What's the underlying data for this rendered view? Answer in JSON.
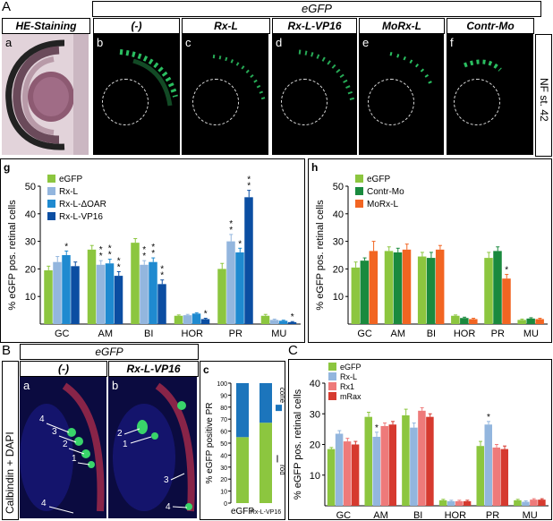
{
  "panelA": {
    "label": "A",
    "egfp_header": "eGFP",
    "he_header": "HE-Staining",
    "stage_label": "NF st. 42",
    "subpanels": [
      {
        "letter": "a",
        "title": "HE-Staining"
      },
      {
        "letter": "b",
        "title": "(-)"
      },
      {
        "letter": "c",
        "title": "Rx-L"
      },
      {
        "letter": "d",
        "title": "Rx-L-VP16"
      },
      {
        "letter": "e",
        "title": "MoRx-L"
      },
      {
        "letter": "f",
        "title": "Contr-Mo"
      }
    ]
  },
  "panelB": {
    "label": "B",
    "egfp_header": "eGFP",
    "side_label": "Calbindin + DAPI",
    "sub_a": {
      "letter": "a",
      "title": "(-)",
      "markers": [
        "4",
        "3",
        "2",
        "1"
      ]
    },
    "sub_b": {
      "letter": "b",
      "title": "Rx-L-VP16",
      "markers": [
        "2",
        "1",
        "3",
        "4"
      ]
    },
    "sub_c": {
      "letter": "c"
    }
  },
  "panelC": {
    "label": "C"
  },
  "chart_data": [
    {
      "id": "g",
      "type": "bar",
      "letter": "g",
      "ylabel": "% eGFP pos. retinal cells",
      "ylim": [
        0,
        50
      ],
      "yticks": [
        10,
        20,
        30,
        40,
        50
      ],
      "categories": [
        "GC",
        "AM",
        "BI",
        "HOR",
        "PR",
        "MU"
      ],
      "series": [
        {
          "name": "eGFP",
          "color": "#8cc63f",
          "values": [
            19.5,
            27,
            29.5,
            3,
            20,
            3
          ],
          "errors": [
            1.5,
            1.5,
            1.5,
            0.3,
            2,
            0.5
          ]
        },
        {
          "name": "Rx-L",
          "color": "#93b6de",
          "values": [
            22.5,
            21.5,
            21.5,
            3.2,
            30,
            1.5
          ],
          "errors": [
            2,
            1.5,
            1.5,
            0.3,
            2.5,
            0.3
          ]
        },
        {
          "name": "Rx-L-ΔOAR",
          "color": "#1f8ad0",
          "values": [
            25,
            22,
            22.5,
            3.8,
            26,
            1.2
          ],
          "errors": [
            1.5,
            1.5,
            1.5,
            0.3,
            1.5,
            0.2
          ]
        },
        {
          "name": "Rx-L-VP16",
          "color": "#0b4ea2",
          "values": [
            21,
            17.5,
            14.5,
            1.8,
            46,
            0.7
          ],
          "errors": [
            1.5,
            1.5,
            1.5,
            0.3,
            2.5,
            0.2
          ]
        }
      ],
      "annotations": [
        {
          "category": "GC",
          "series": 2,
          "text": "*"
        },
        {
          "category": "AM",
          "series": 1,
          "text": "**"
        },
        {
          "category": "AM",
          "series": 2,
          "text": "**"
        },
        {
          "category": "AM",
          "series": 3,
          "text": "**"
        },
        {
          "category": "BI",
          "series": 1,
          "text": "**"
        },
        {
          "category": "BI",
          "series": 2,
          "text": "**"
        },
        {
          "category": "BI",
          "series": 3,
          "text": "**"
        },
        {
          "category": "HOR",
          "series": 3,
          "text": "*"
        },
        {
          "category": "PR",
          "series": 1,
          "text": "**"
        },
        {
          "category": "PR",
          "series": 2,
          "text": "*"
        },
        {
          "category": "PR",
          "series": 3,
          "text": "**"
        },
        {
          "category": "MU",
          "series": 3,
          "text": "*"
        }
      ],
      "legend_position": "top-left"
    },
    {
      "id": "h",
      "type": "bar",
      "letter": "h",
      "ylabel": "% eGFP pos. retinal cells",
      "ylim": [
        0,
        50
      ],
      "yticks": [
        10,
        20,
        30,
        40,
        50
      ],
      "categories": [
        "GC",
        "AM",
        "BI",
        "HOR",
        "PR",
        "MU"
      ],
      "series": [
        {
          "name": "eGFP",
          "color": "#8cc63f",
          "values": [
            20.5,
            26.5,
            24.5,
            3,
            24,
            1.5
          ],
          "errors": [
            2,
            1.5,
            1.5,
            0.3,
            2,
            0.3
          ]
        },
        {
          "name": "Contr-Mo",
          "color": "#1a8a3e",
          "values": [
            23,
            26,
            24,
            2.2,
            26.5,
            2
          ],
          "errors": [
            1,
            1.5,
            2,
            0.3,
            1.5,
            0.3
          ]
        },
        {
          "name": "MoRx-L",
          "color": "#f26522",
          "values": [
            26.5,
            27,
            27,
            1.8,
            16.5,
            1.8
          ],
          "errors": [
            3.5,
            2,
            1.5,
            0.3,
            1.5,
            0.3
          ]
        }
      ],
      "annotations": [
        {
          "category": "PR",
          "series": 2,
          "text": "*"
        }
      ],
      "legend_position": "top-left"
    },
    {
      "id": "c",
      "type": "bar",
      "letter": "c",
      "ylabel": "% eGFP positive PR",
      "ylim": [
        0,
        100
      ],
      "yticks": [
        0,
        10,
        20,
        30,
        40,
        50,
        60,
        70,
        80,
        90,
        100
      ],
      "categories": [
        "eGFP",
        "Rx-L-VP16"
      ],
      "stacked": true,
      "series": [
        {
          "name": "rod",
          "color": "#8cc63f",
          "values": [
            55,
            67
          ]
        },
        {
          "name": "cone",
          "color": "#1c75bc",
          "values": [
            45,
            33
          ]
        }
      ],
      "legend_position": "right"
    },
    {
      "id": "C",
      "type": "bar",
      "letter": "",
      "ylabel": "% eGFP pos. retinal cells",
      "ylim": [
        0,
        40
      ],
      "yticks": [
        10,
        20,
        30,
        40
      ],
      "categories": [
        "GC",
        "AM",
        "BI",
        "HOR",
        "PR",
        "MU"
      ],
      "series": [
        {
          "name": "eGFP",
          "color": "#8cc63f",
          "values": [
            18.5,
            29,
            29.5,
            1.8,
            19.5,
            1.8
          ],
          "errors": [
            0.5,
            1.5,
            2,
            0.3,
            1.5,
            0.3
          ]
        },
        {
          "name": "Rx-L",
          "color": "#93b6de",
          "values": [
            23.5,
            22.5,
            25.5,
            1.5,
            26.5,
            1.3
          ],
          "errors": [
            1,
            1.5,
            1.5,
            0.3,
            1,
            0.3
          ]
        },
        {
          "name": "Rx1",
          "color": "#ee7a7a",
          "values": [
            21,
            26,
            31,
            1.5,
            19,
            2
          ],
          "errors": [
            1,
            1,
            1,
            0.3,
            1,
            0.3
          ]
        },
        {
          "name": "mRax",
          "color": "#d63a2f",
          "values": [
            20,
            26.5,
            29,
            1.5,
            18.5,
            2
          ],
          "errors": [
            1,
            1,
            1,
            0.3,
            1,
            0.3
          ]
        }
      ],
      "annotations": [
        {
          "category": "AM",
          "series": 1,
          "text": "*"
        },
        {
          "category": "PR",
          "series": 1,
          "text": "*"
        }
      ],
      "legend_position": "top-left"
    }
  ]
}
